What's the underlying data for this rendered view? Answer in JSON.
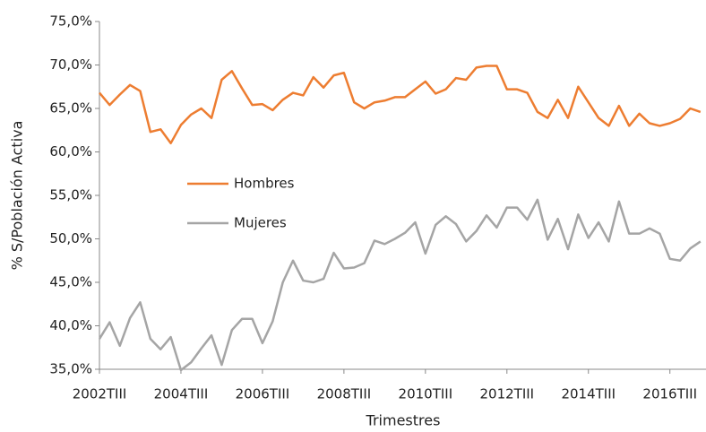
{
  "chart_data": {
    "type": "line",
    "x_label": "Trimestres",
    "y_label": "% S/Población Activa",
    "categories": [
      "2002TIII",
      null,
      null,
      null,
      null,
      null,
      null,
      null,
      "2004TIII",
      null,
      null,
      null,
      null,
      null,
      null,
      null,
      "2006TIII",
      null,
      null,
      null,
      null,
      null,
      null,
      null,
      "2008TIII",
      null,
      null,
      null,
      null,
      null,
      null,
      null,
      "2010TIII",
      null,
      null,
      null,
      null,
      null,
      null,
      null,
      "2012TIII",
      null,
      null,
      null,
      null,
      null,
      null,
      null,
      "2014TIII",
      null,
      null,
      null,
      null,
      null,
      null,
      null,
      "2016TIII",
      null,
      null,
      null
    ],
    "series": [
      {
        "name": "Hombres",
        "color": "#ED7D31",
        "values": [
          66.8,
          65.4,
          66.6,
          67.7,
          67.0,
          62.3,
          62.6,
          61.0,
          63.1,
          64.3,
          65.0,
          63.9,
          68.3,
          69.3,
          67.3,
          65.4,
          65.5,
          64.8,
          66.0,
          66.8,
          66.5,
          68.6,
          67.4,
          68.8,
          69.1,
          65.7,
          65.0,
          65.7,
          65.9,
          66.3,
          66.3,
          67.2,
          68.1,
          66.7,
          67.2,
          68.5,
          68.3,
          69.7,
          69.9,
          69.9,
          67.2,
          67.2,
          66.8,
          64.6,
          63.9,
          66.0,
          63.9,
          67.5,
          65.7,
          63.9,
          63.0,
          65.3,
          63.0,
          64.4,
          63.3,
          63.0,
          63.3,
          63.8,
          65.0,
          64.6
        ]
      },
      {
        "name": "Mujeres",
        "color": "#A5A5A5",
        "values": [
          38.5,
          40.4,
          37.7,
          40.9,
          42.7,
          38.5,
          37.3,
          38.7,
          34.9,
          35.8,
          37.4,
          38.9,
          35.5,
          39.5,
          40.8,
          40.8,
          38.0,
          40.5,
          45.0,
          47.5,
          45.2,
          45.0,
          45.4,
          48.4,
          46.6,
          46.7,
          47.2,
          49.8,
          49.4,
          50.0,
          50.7,
          51.9,
          48.3,
          51.6,
          52.6,
          51.7,
          49.7,
          50.9,
          52.7,
          51.3,
          53.6,
          53.6,
          52.2,
          54.5,
          49.9,
          52.3,
          48.8,
          52.8,
          50.1,
          51.9,
          49.7,
          54.3,
          50.6,
          50.6,
          51.2,
          50.6,
          47.7,
          47.5,
          48.9,
          49.7
        ]
      }
    ],
    "ylim": [
      35,
      75
    ],
    "yticks": [
      {
        "value": 35,
        "label": "35,0%"
      },
      {
        "value": 40,
        "label": "40,0%"
      },
      {
        "value": 45,
        "label": "45,0%"
      },
      {
        "value": 50,
        "label": "50,0%"
      },
      {
        "value": 55,
        "label": "55,0%"
      },
      {
        "value": 60,
        "label": "60,0%"
      },
      {
        "value": 65,
        "label": "65,0%"
      },
      {
        "value": 70,
        "label": "70,0%"
      },
      {
        "value": 75,
        "label": "75,0%"
      }
    ],
    "grid": false,
    "legend": "center-left"
  }
}
